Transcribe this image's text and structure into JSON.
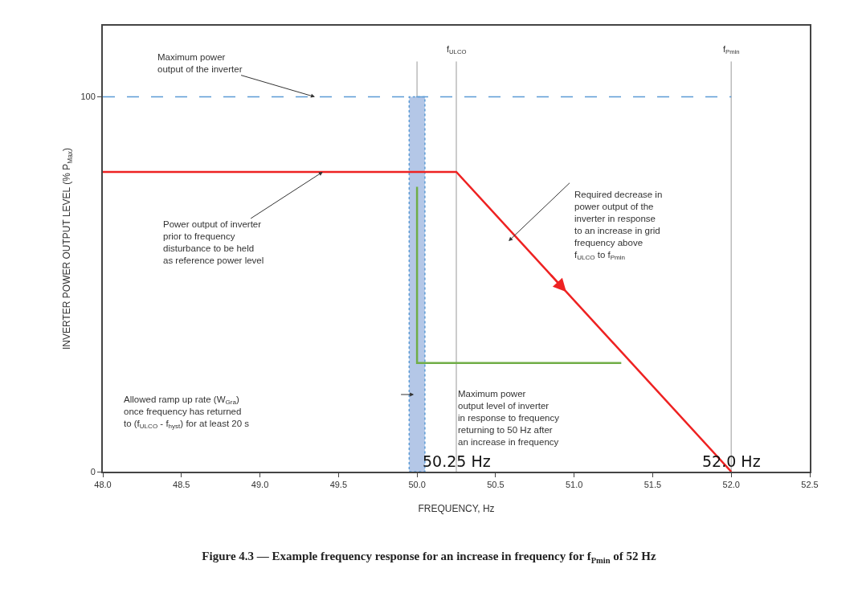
{
  "chart_data": {
    "type": "line",
    "title": "Figure 4.3 — Example frequency response for an increase in frequency for f$_{Pmin}$ of 52 Hz",
    "xlabel": "FREQUENCY, Hz",
    "ylabel": "INVERTER POWER OUTPUT LEVEL (% P$_{Max}$)",
    "series": [
      {
        "color": "#ee2222",
        "x": [
          48.0,
          50.25,
          52.0
        ],
        "values": [
          80,
          80,
          0
        ]
      },
      {
        "color": "#70ad47",
        "x": [
          51.3,
          50.0,
          50.0
        ],
        "values": [
          29,
          29,
          76
        ]
      }
    ],
    "xlim": [
      48.0,
      52.5
    ],
    "xticks": [
      {
        "value": 48.0,
        "label": "48.0"
      },
      {
        "value": 48.5,
        "label": "48.5"
      },
      {
        "value": 49.0,
        "label": "49.0"
      },
      {
        "value": 49.5,
        "label": "49.5"
      },
      {
        "value": 50.0,
        "label": "50.0"
      },
      {
        "value": 50.5,
        "label": "50.5"
      },
      {
        "value": 51.0,
        "label": "51.0"
      },
      {
        "value": 51.5,
        "label": "51.5"
      },
      {
        "value": 52.0,
        "label": "52.0"
      },
      {
        "value": 52.5,
        "label": "52.5"
      }
    ],
    "ylim": [
      0,
      119
    ],
    "yticks": [
      0,
      100
    ],
    "ref_lines": [
      {
        "axis": "y",
        "value": 100,
        "color": "#5b9bd5",
        "line_style": "dashed"
      },
      {
        "axis": "x",
        "value": 50.0,
        "color": "#bbbbbb"
      },
      {
        "axis": "x",
        "value": 50.25,
        "label": "f$_{ULCO}$",
        "color": "#bbbbbb"
      },
      {
        "axis": "x",
        "value": 52.0,
        "label": "f$_{Pmin}$",
        "color": "#bbbbbb"
      }
    ],
    "bands": [
      {
        "axis": "x",
        "from": 49.95,
        "to": 50.05,
        "color": "#b4c7e7"
      }
    ],
    "annotations": [
      {
        "text": "Maximum power\noutput of the inverter",
        "x": 49.35,
        "y": 100
      },
      {
        "text": "Power output of inverter\nprior to frequency\ndisturbance to be held\nas reference power level",
        "x": 49.4,
        "y": 80
      },
      "Required decrease in\npower output of the\ninverter in response\nto an increase in grid\nfrequency above\nf$_{ULCO}$ to f$_{Pmin}$",
      "Allowed ramp up rate (W$_{Gra}$)\nonce frequency has returned\nto (f$_{ULCO}$ - f$_{hyst}$) for at least 20 s",
      "Maximum power\noutput level of inverter\nin response to frequency\nreturning to 50 Hz after\nan increase in frequency",
      {
        "text": "50.25 Hz",
        "x": 50.25,
        "y": 0
      },
      {
        "text": "52.0 Hz",
        "x": 52.0,
        "y": 0
      }
    ],
    "grid": false
  }
}
